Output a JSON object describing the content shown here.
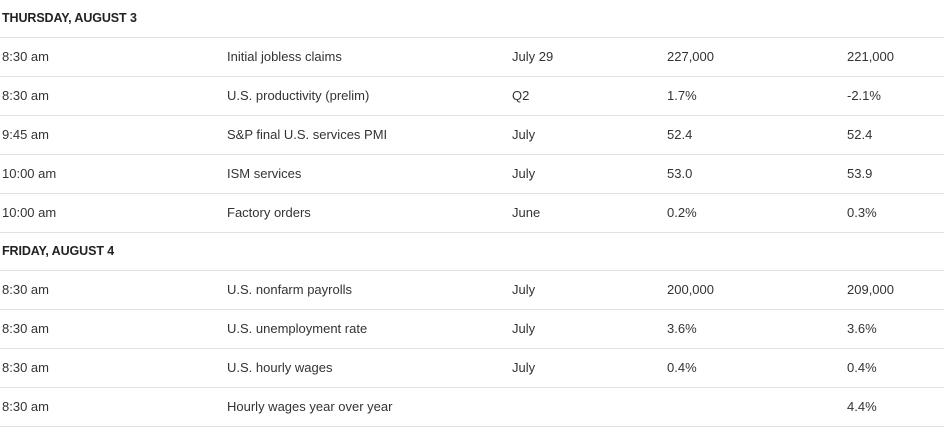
{
  "days": [
    {
      "title": "THURSDAY, AUGUST 3",
      "rows": [
        {
          "time": "8:30 am",
          "report": "Initial jobless claims",
          "period": "July 29",
          "forecast": "227,000",
          "previous": "221,000"
        },
        {
          "time": "8:30 am",
          "report": "U.S. productivity (prelim)",
          "period": "Q2",
          "forecast": "1.7%",
          "previous": "-2.1%"
        },
        {
          "time": "9:45 am",
          "report": "S&P final U.S. services PMI",
          "period": "July",
          "forecast": "52.4",
          "previous": "52.4"
        },
        {
          "time": "10:00 am",
          "report": "ISM services",
          "period": "July",
          "forecast": "53.0",
          "previous": "53.9"
        },
        {
          "time": "10:00 am",
          "report": "Factory orders",
          "period": "June",
          "forecast": "0.2%",
          "previous": "0.3%"
        }
      ]
    },
    {
      "title": "FRIDAY, AUGUST 4",
      "rows": [
        {
          "time": "8:30 am",
          "report": "U.S. nonfarm payrolls",
          "period": "July",
          "forecast": "200,000",
          "previous": "209,000"
        },
        {
          "time": "8:30 am",
          "report": "U.S. unemployment rate",
          "period": "July",
          "forecast": "3.6%",
          "previous": "3.6%"
        },
        {
          "time": "8:30 am",
          "report": "U.S. hourly wages",
          "period": "July",
          "forecast": "0.4%",
          "previous": "0.4%"
        },
        {
          "time": "8:30 am",
          "report": "Hourly wages year over year",
          "period": "",
          "forecast": "",
          "previous": "4.4%"
        }
      ]
    }
  ]
}
